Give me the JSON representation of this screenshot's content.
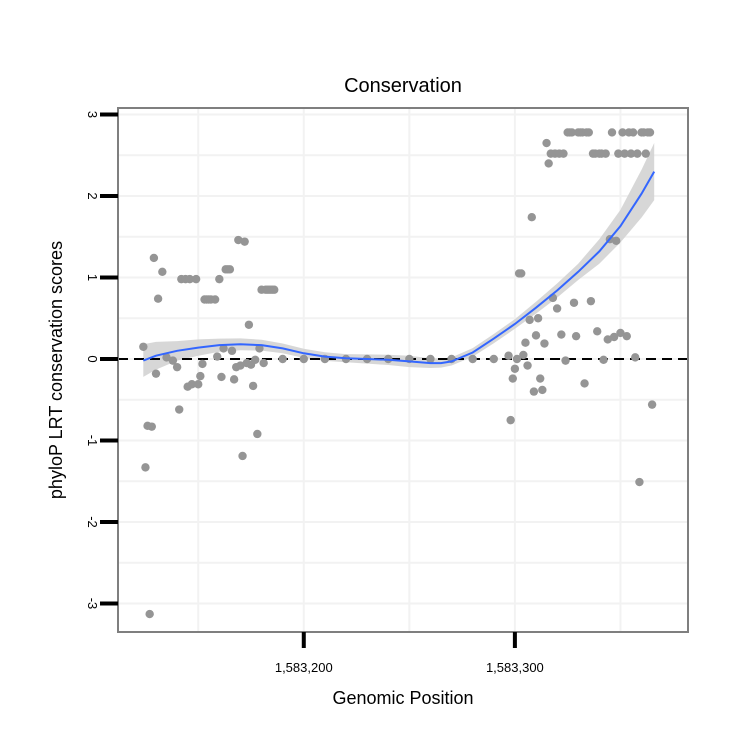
{
  "chart_data": {
    "type": "scatter",
    "title": "Conservation",
    "xlabel": "Genomic Position",
    "ylabel": "phyloP LRT conservation scores",
    "xlim": [
      1583112,
      1583382
    ],
    "ylim": [
      -3.35,
      3.08
    ],
    "x_ticks": [
      1583200,
      1583300
    ],
    "x_tick_labels": [
      "1,583,200",
      "1,583,300"
    ],
    "y_ticks": [
      -3,
      -2,
      -1,
      0,
      1,
      2,
      3
    ],
    "y_tick_labels": [
      "-3",
      "-2",
      "-1",
      "0",
      "1",
      "2",
      "3"
    ],
    "reference_line": 0,
    "grid": true,
    "colors": {
      "points": "#959595",
      "smooth": "#3366ff",
      "ribbon": "#d3d3d3",
      "panel_border": "#7f7f7f",
      "grid": "#f2f2f2"
    },
    "points": [
      [
        1583124,
        0.15
      ],
      [
        1583125,
        -1.33
      ],
      [
        1583126,
        -0.82
      ],
      [
        1583127,
        -3.13
      ],
      [
        1583128,
        -0.83
      ],
      [
        1583129,
        1.24
      ],
      [
        1583130,
        -0.18
      ],
      [
        1583131,
        0.74
      ],
      [
        1583133,
        1.07
      ],
      [
        1583135,
        0.02
      ],
      [
        1583138,
        -0.02
      ],
      [
        1583140,
        -0.1
      ],
      [
        1583141,
        -0.62
      ],
      [
        1583142,
        0.98
      ],
      [
        1583144,
        0.98
      ],
      [
        1583145,
        -0.34
      ],
      [
        1583146,
        0.98
      ],
      [
        1583147,
        -0.31
      ],
      [
        1583149,
        0.98
      ],
      [
        1583150,
        -0.31
      ],
      [
        1583151,
        -0.21
      ],
      [
        1583152,
        -0.06
      ],
      [
        1583153,
        0.73
      ],
      [
        1583154,
        0.73
      ],
      [
        1583155,
        0.73
      ],
      [
        1583156,
        0.73
      ],
      [
        1583158,
        0.73
      ],
      [
        1583159,
        0.03
      ],
      [
        1583160,
        0.98
      ],
      [
        1583161,
        -0.22
      ],
      [
        1583162,
        0.13
      ],
      [
        1583163,
        1.1
      ],
      [
        1583164,
        1.1
      ],
      [
        1583165,
        1.1
      ],
      [
        1583166,
        0.1
      ],
      [
        1583167,
        -0.25
      ],
      [
        1583168,
        -0.1
      ],
      [
        1583169,
        1.46
      ],
      [
        1583170,
        -0.08
      ],
      [
        1583171,
        -1.19
      ],
      [
        1583172,
        1.44
      ],
      [
        1583173,
        -0.05
      ],
      [
        1583174,
        0.42
      ],
      [
        1583175,
        -0.07
      ],
      [
        1583176,
        -0.33
      ],
      [
        1583177,
        -0.01
      ],
      [
        1583178,
        -0.92
      ],
      [
        1583179,
        0.13
      ],
      [
        1583180,
        0.85
      ],
      [
        1583181,
        -0.05
      ],
      [
        1583182,
        0.85
      ],
      [
        1583183,
        0.85
      ],
      [
        1583184,
        0.85
      ],
      [
        1583185,
        0.85
      ],
      [
        1583186,
        0.85
      ],
      [
        1583190,
        0.0
      ],
      [
        1583200,
        0.0
      ],
      [
        1583210,
        0.0
      ],
      [
        1583220,
        0.0
      ],
      [
        1583230,
        0.0
      ],
      [
        1583240,
        0.0
      ],
      [
        1583250,
        0.0
      ],
      [
        1583260,
        0.0
      ],
      [
        1583270,
        0.0
      ],
      [
        1583280,
        0.0
      ],
      [
        1583290,
        0.0
      ],
      [
        1583297,
        0.04
      ],
      [
        1583298,
        -0.75
      ],
      [
        1583299,
        -0.24
      ],
      [
        1583300,
        -0.12
      ],
      [
        1583301,
        0.0
      ],
      [
        1583302,
        1.05
      ],
      [
        1583303,
        1.05
      ],
      [
        1583304,
        0.05
      ],
      [
        1583305,
        0.2
      ],
      [
        1583306,
        -0.08
      ],
      [
        1583307,
        0.48
      ],
      [
        1583308,
        1.74
      ],
      [
        1583309,
        -0.4
      ],
      [
        1583310,
        0.29
      ],
      [
        1583311,
        0.5
      ],
      [
        1583312,
        -0.24
      ],
      [
        1583313,
        -0.38
      ],
      [
        1583314,
        0.19
      ],
      [
        1583315,
        2.65
      ],
      [
        1583316,
        2.4
      ],
      [
        1583317,
        2.52
      ],
      [
        1583318,
        0.75
      ],
      [
        1583319,
        2.52
      ],
      [
        1583320,
        0.62
      ],
      [
        1583321,
        2.52
      ],
      [
        1583322,
        0.3
      ],
      [
        1583323,
        2.52
      ],
      [
        1583324,
        -0.02
      ],
      [
        1583325,
        2.78
      ],
      [
        1583326,
        2.78
      ],
      [
        1583327,
        2.78
      ],
      [
        1583328,
        0.69
      ],
      [
        1583329,
        0.28
      ],
      [
        1583330,
        2.78
      ],
      [
        1583331,
        2.78
      ],
      [
        1583332,
        2.78
      ],
      [
        1583333,
        -0.3
      ],
      [
        1583334,
        2.78
      ],
      [
        1583335,
        2.78
      ],
      [
        1583336,
        0.71
      ],
      [
        1583337,
        2.52
      ],
      [
        1583338,
        2.52
      ],
      [
        1583339,
        0.34
      ],
      [
        1583340,
        2.52
      ],
      [
        1583341,
        2.52
      ],
      [
        1583342,
        -0.01
      ],
      [
        1583343,
        2.52
      ],
      [
        1583344,
        0.24
      ],
      [
        1583345,
        1.47
      ],
      [
        1583346,
        2.78
      ],
      [
        1583347,
        0.27
      ],
      [
        1583348,
        1.45
      ],
      [
        1583349,
        2.52
      ],
      [
        1583350,
        0.32
      ],
      [
        1583351,
        2.78
      ],
      [
        1583352,
        2.52
      ],
      [
        1583353,
        0.28
      ],
      [
        1583354,
        2.78
      ],
      [
        1583355,
        2.52
      ],
      [
        1583356,
        2.78
      ],
      [
        1583357,
        0.02
      ],
      [
        1583358,
        2.52
      ],
      [
        1583359,
        -1.51
      ],
      [
        1583360,
        2.78
      ],
      [
        1583361,
        2.78
      ],
      [
        1583362,
        2.52
      ],
      [
        1583363,
        2.78
      ],
      [
        1583364,
        2.78
      ],
      [
        1583365,
        -0.56
      ]
    ],
    "smooth": [
      [
        1583124,
        -0.02
      ],
      [
        1583130,
        0.04
      ],
      [
        1583140,
        0.1
      ],
      [
        1583150,
        0.14
      ],
      [
        1583160,
        0.17
      ],
      [
        1583170,
        0.18
      ],
      [
        1583180,
        0.17
      ],
      [
        1583190,
        0.13
      ],
      [
        1583200,
        0.07
      ],
      [
        1583210,
        0.03
      ],
      [
        1583220,
        0.01
      ],
      [
        1583230,
        0.0
      ],
      [
        1583240,
        -0.01
      ],
      [
        1583250,
        -0.03
      ],
      [
        1583260,
        -0.05
      ],
      [
        1583265,
        -0.05
      ],
      [
        1583270,
        -0.03
      ],
      [
        1583280,
        0.08
      ],
      [
        1583290,
        0.25
      ],
      [
        1583300,
        0.43
      ],
      [
        1583310,
        0.63
      ],
      [
        1583320,
        0.84
      ],
      [
        1583330,
        1.07
      ],
      [
        1583340,
        1.32
      ],
      [
        1583350,
        1.63
      ],
      [
        1583360,
        2.03
      ],
      [
        1583366,
        2.3
      ]
    ],
    "ribbon_halfwidth": [
      [
        1583124,
        0.2
      ],
      [
        1583140,
        0.12
      ],
      [
        1583160,
        0.08
      ],
      [
        1583190,
        0.06
      ],
      [
        1583220,
        0.05
      ],
      [
        1583250,
        0.07
      ],
      [
        1583270,
        0.05
      ],
      [
        1583300,
        0.06
      ],
      [
        1583330,
        0.1
      ],
      [
        1583350,
        0.2
      ],
      [
        1583366,
        0.35
      ]
    ]
  }
}
